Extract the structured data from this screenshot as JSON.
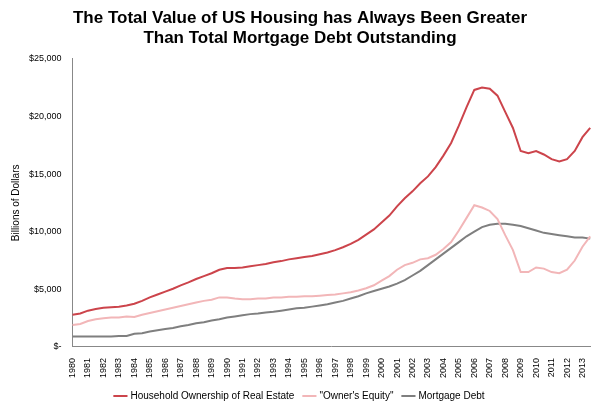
{
  "chart_data": {
    "type": "line",
    "title": [
      "The Total Value of US Housing has Always Been Greater",
      "Than Total Mortgage Debt Outstanding"
    ],
    "y_label": "Billions of Dollars",
    "categories": [
      "1980",
      null,
      "1981",
      null,
      "1982",
      null,
      "1983",
      null,
      "1984",
      null,
      "1985",
      null,
      "1986",
      null,
      "1987",
      null,
      "1988",
      null,
      "1989",
      null,
      "1990",
      null,
      "1991",
      null,
      "1992",
      null,
      "1993",
      null,
      "1994",
      null,
      "1995",
      null,
      "1996",
      null,
      "1997",
      null,
      "1998",
      null,
      "1999",
      null,
      "2000",
      null,
      "2001",
      null,
      "2002",
      null,
      "2003",
      null,
      "2004",
      null,
      "2005",
      null,
      "2006",
      null,
      "2007",
      null,
      "2008",
      null,
      "2009",
      null,
      "2010",
      null,
      "2011",
      null,
      "2012",
      null,
      "2013",
      null
    ],
    "series": [
      {
        "name": "Household Ownership of Real Estate",
        "color": "#cc444b",
        "values": [
          2800,
          2900,
          3150,
          3300,
          3400,
          3450,
          3500,
          3600,
          3750,
          4000,
          4300,
          4550,
          4800,
          5050,
          5350,
          5600,
          5900,
          6150,
          6400,
          6700,
          6850,
          6850,
          6900,
          7000,
          7100,
          7200,
          7350,
          7450,
          7600,
          7700,
          7800,
          7900,
          8050,
          8200,
          8400,
          8650,
          8950,
          9300,
          9750,
          10200,
          10800,
          11400,
          12200,
          12900,
          13500,
          14200,
          14800,
          15600,
          16600,
          17700,
          19200,
          20800,
          22300,
          22500,
          22400,
          21800,
          20400,
          19000,
          17000,
          16800,
          17000,
          16700,
          16300,
          16100,
          16300,
          17000,
          18200,
          19000
        ]
      },
      {
        "name": "\"Owner's Equity\"",
        "color": "#f2b6b8",
        "values": [
          1900,
          2000,
          2250,
          2400,
          2500,
          2550,
          2550,
          2650,
          2600,
          2800,
          2950,
          3100,
          3250,
          3400,
          3550,
          3700,
          3850,
          4000,
          4100,
          4300,
          4300,
          4200,
          4150,
          4150,
          4200,
          4200,
          4300,
          4300,
          4350,
          4350,
          4400,
          4400,
          4450,
          4500,
          4550,
          4650,
          4750,
          4900,
          5100,
          5350,
          5750,
          6150,
          6700,
          7100,
          7300,
          7600,
          7700,
          8000,
          8500,
          9100,
          10100,
          11200,
          12300,
          12100,
          11800,
          11100,
          9700,
          8400,
          6500,
          6500,
          6900,
          6800,
          6500,
          6400,
          6700,
          7500,
          8700,
          9600
        ]
      },
      {
        "name": "Mortgage Debt",
        "color": "#7f7f7f",
        "values": [
          900,
          900,
          900,
          900,
          900,
          900,
          950,
          950,
          1150,
          1200,
          1350,
          1450,
          1550,
          1650,
          1800,
          1900,
          2050,
          2150,
          2300,
          2400,
          2550,
          2650,
          2750,
          2850,
          2900,
          3000,
          3050,
          3150,
          3250,
          3350,
          3400,
          3500,
          3600,
          3700,
          3850,
          4000,
          4200,
          4400,
          4650,
          4850,
          5050,
          5250,
          5500,
          5800,
          6200,
          6600,
          7100,
          7600,
          8100,
          8600,
          9100,
          9600,
          10000,
          10400,
          10600,
          10700,
          10700,
          10600,
          10500,
          10300,
          10100,
          9900,
          9800,
          9700,
          9600,
          9500,
          9500,
          9400
        ]
      }
    ],
    "ylim": [
      0,
      25000
    ],
    "yticks": [
      {
        "value": 0,
        "label": "$-"
      },
      {
        "value": 5000,
        "label": "$5,000"
      },
      {
        "value": 10000,
        "label": "$10,000"
      },
      {
        "value": 15000,
        "label": "$15,000"
      },
      {
        "value": 20000,
        "label": "$20,000"
      },
      {
        "value": 25000,
        "label": "$25,000"
      }
    ],
    "grid": false,
    "legend": "bottom"
  }
}
